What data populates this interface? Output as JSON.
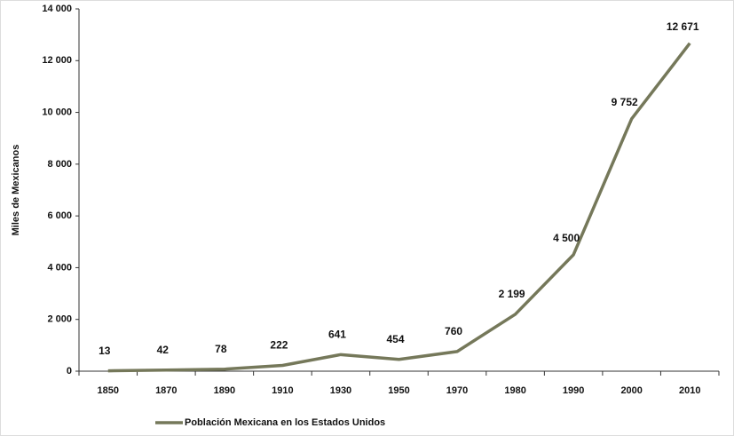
{
  "chart_data": {
    "type": "line",
    "y_label": "Miles de Mexicanos",
    "categories": [
      "1850",
      "1870",
      "1890",
      "1910",
      "1930",
      "1950",
      "1970",
      "1980",
      "1990",
      "2000",
      "2010"
    ],
    "series": [
      {
        "name": "Población Mexicana en los Estados Unidos",
        "color": "#75785a",
        "values": [
          13,
          42,
          78,
          222,
          641,
          454,
          760,
          2199,
          4500,
          9752,
          12671
        ],
        "value_labels": [
          "13",
          "42",
          "78",
          "222",
          "641",
          "454",
          "760",
          "2 199",
          "4 500",
          "9 752",
          "12 671"
        ]
      }
    ],
    "ylim": [
      0,
      14000
    ],
    "yticks": [
      0,
      {
        "value": 2000,
        "label": "2 000"
      },
      {
        "value": 4000,
        "label": "4 000"
      },
      {
        "value": 6000,
        "label": "6 000"
      },
      {
        "value": 8000,
        "label": "8 000"
      },
      {
        "value": 10000,
        "label": "10 000"
      },
      {
        "value": 12000,
        "label": "12 000"
      },
      {
        "value": 14000,
        "label": "14 000"
      }
    ]
  }
}
